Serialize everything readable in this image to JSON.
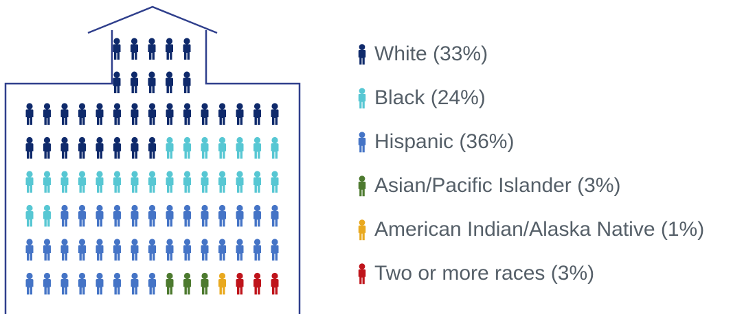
{
  "chart_data": {
    "type": "waffle",
    "categories": [
      "White",
      "Black",
      "Hispanic",
      "Asian/Pacific Islander",
      "American Indian/Alaska Native",
      "Two or more races"
    ],
    "values": [
      33,
      24,
      36,
      3,
      1,
      3
    ],
    "value_labels": [
      "(33%)",
      "(24%)",
      "(36%)",
      "(3%)",
      "(1%)",
      "(3%)"
    ],
    "colors": [
      "#0f2a6b",
      "#57c7d3",
      "#4574c6",
      "#4d7a2f",
      "#e9a91f",
      "#bf141b"
    ]
  }
}
